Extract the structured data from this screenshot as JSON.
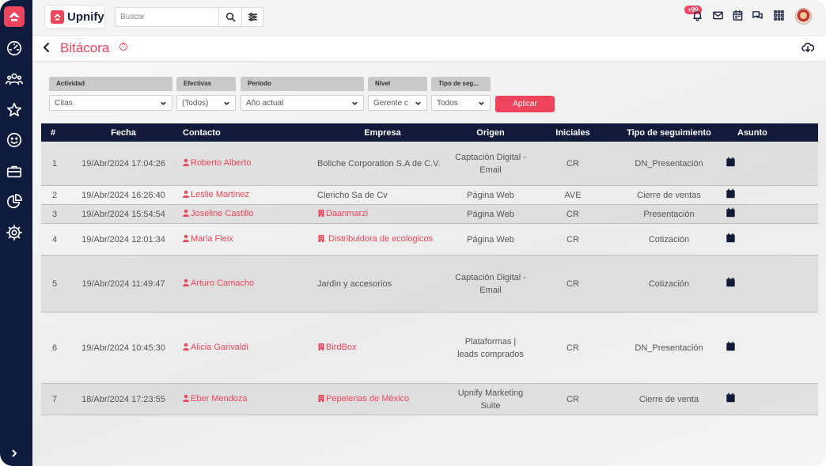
{
  "app": {
    "brand": "Upnify",
    "search_placeholder": "Buscar",
    "notification_count": "+99"
  },
  "page": {
    "title": "Bitácora"
  },
  "filters": [
    {
      "label": "Actividad",
      "value": "Citas"
    },
    {
      "label": "Efectivas",
      "value": "(Todos)"
    },
    {
      "label": "Período",
      "value": "Año actual"
    },
    {
      "label": "Nivel",
      "value": "Gerente c"
    },
    {
      "label": "Tipo de seg...",
      "value": "Todos"
    }
  ],
  "apply_label": "Aplicar",
  "table": {
    "columns": [
      "#",
      "Fecha",
      "Contacto",
      "Empresa",
      "Origen",
      "Iniciales",
      "Tipo de seguimiento",
      "Asunto"
    ],
    "rows": [
      {
        "num": "1",
        "fecha": "19/Abr/2024 17:04:26",
        "contacto": "Roberto Alberto",
        "empresa": "Boliche Corporation S.A de C.V.",
        "empresa_link": false,
        "origen": "Captación Digital - Email",
        "iniciales": "CR",
        "tipo": "DN_Presentación"
      },
      {
        "num": "2",
        "fecha": "19/Abr/2024 16:26:40",
        "contacto": "Leslie Martinez",
        "empresa": "Clericho Sa de Cv",
        "empresa_link": false,
        "origen": "Página Web",
        "iniciales": "AVE",
        "tipo": "Cierre de ventas"
      },
      {
        "num": "3",
        "fecha": "19/Abr/2024 15:54:54",
        "contacto": "Joseline Castillo",
        "empresa": "Daanmarzi",
        "empresa_link": true,
        "origen": "Página Web",
        "iniciales": "CR",
        "tipo": "Presentación"
      },
      {
        "num": "4",
        "fecha": "19/Abr/2024 12:01:34",
        "contacto": "Maria Fleix",
        "empresa": " Distribuidora de ecologicos",
        "empresa_link": true,
        "origen": "Página Web",
        "iniciales": "CR",
        "tipo": "Cotización"
      },
      {
        "num": "5",
        "fecha": "19/Abr/2024 11:49:47",
        "contacto": "Arturo Camacho",
        "empresa": "Jardin y accesorios",
        "empresa_link": false,
        "origen": "Captación Digital - Email",
        "iniciales": "CR",
        "tipo": "Cotización"
      },
      {
        "num": "6",
        "fecha": "19/Abr/2024 10:45:30",
        "contacto": "Alicia Garivaldi",
        "empresa": "BirdBox",
        "empresa_link": true,
        "origen": "Plataformas | leads comprados",
        "iniciales": "CR",
        "tipo": "DN_Presentación"
      },
      {
        "num": "7",
        "fecha": "18/Abr/2024 17:23:55",
        "contacto": "Eber Mendoza",
        "empresa": "Pepelerias de México",
        "empresa_link": true,
        "origen": "Upnify Marketing Suite",
        "iniciales": "CR",
        "tipo": "Cierre de venta"
      }
    ]
  }
}
